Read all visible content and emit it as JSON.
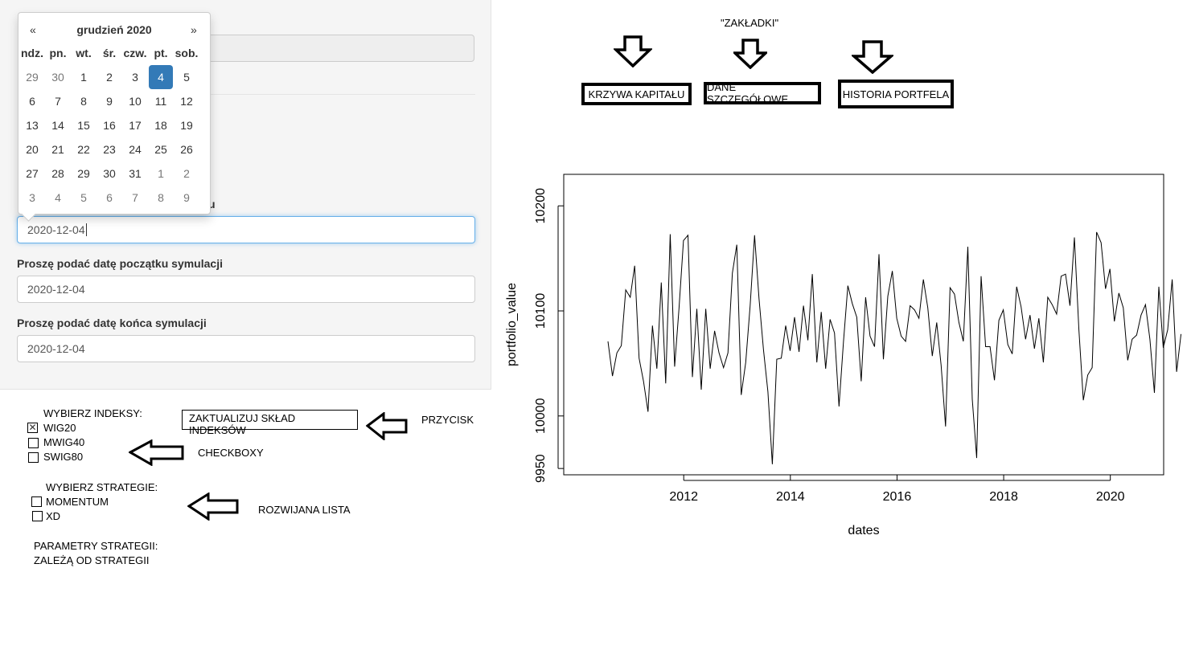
{
  "form": {
    "field_top_label_fragment": "u",
    "date1_value": "2020-12-04",
    "start_label": "Proszę podać datę początku symulacji",
    "start_value": "2020-12-04",
    "end_label": "Proszę podać datę końca symulacji",
    "end_value": "2020-12-04"
  },
  "calendar": {
    "prev": "«",
    "next": "»",
    "title": "grudzień 2020",
    "weekdays": [
      "ndz.",
      "pn.",
      "wt.",
      "śr.",
      "czw.",
      "pt.",
      "sob."
    ],
    "weeks": [
      [
        "29",
        "30",
        "1",
        "2",
        "3",
        "4",
        "5"
      ],
      [
        "6",
        "7",
        "8",
        "9",
        "10",
        "11",
        "12"
      ],
      [
        "13",
        "14",
        "15",
        "16",
        "17",
        "18",
        "19"
      ],
      [
        "20",
        "21",
        "22",
        "23",
        "24",
        "25",
        "26"
      ],
      [
        "27",
        "28",
        "29",
        "30",
        "31",
        "1",
        "2"
      ],
      [
        "3",
        "4",
        "5",
        "6",
        "7",
        "8",
        "9"
      ]
    ],
    "selected": "4"
  },
  "mockup": {
    "indices_heading": "WYBIERZ INDEKSY:",
    "indices": [
      {
        "label": "WIG20",
        "checked": true
      },
      {
        "label": "MWIG40",
        "checked": false
      },
      {
        "label": "SWIG80",
        "checked": false
      }
    ],
    "update_button": "ZAKTUALIZUJ SKŁAD INDEKSÓW",
    "button_note": "PRZYCISK",
    "checkbox_note": "CHECKBOXY",
    "strategy_heading": "WYBIERZ STRATEGIE:",
    "strategies": [
      {
        "label": "MOMENTUM",
        "checked": false
      },
      {
        "label": "XD",
        "checked": false
      }
    ],
    "dropdown_note": "ROZWIJANA LISTA",
    "params_line1": "PARAMETRY STRATEGII:",
    "params_line2": "ZALEŻĄ OD STRATEGII",
    "tabs_note": "\"ZAKŁADKI\"",
    "tabs": [
      "KRZYWA KAPITAŁU",
      "DANE SZCZEGÓŁOWE",
      "HISTORIA PORTFELA"
    ]
  },
  "chart_data": {
    "type": "line",
    "xlabel": "dates",
    "ylabel": "portfolio_value",
    "xlim": [
      2009.75,
      2021.0
    ],
    "ylim": [
      9944,
      10230
    ],
    "xticks": [
      2012,
      2014,
      2016,
      2018,
      2020
    ],
    "yticks": [
      9950,
      10000,
      10100,
      10200
    ],
    "x_start": 2010.58,
    "x_step": 0.0833,
    "values": [
      10071,
      10038,
      10060,
      10067,
      10120,
      10113,
      10143,
      10055,
      10033,
      10004,
      10086,
      10045,
      10127,
      10031,
      10173,
      10047,
      10103,
      10167,
      10172,
      10037,
      10102,
      10025,
      10102,
      10045,
      10081,
      10060,
      10046,
      10060,
      10136,
      10163,
      10020,
      10051,
      10105,
      10172,
      10112,
      10063,
      10023,
      9954,
      10054,
      10055,
      10086,
      10062,
      10094,
      10061,
      10105,
      10072,
      10135,
      10051,
      10099,
      10045,
      10092,
      10079,
      10009,
      10070,
      10124,
      10107,
      10094,
      10033,
      10113,
      10076,
      10066,
      10154,
      10054,
      10114,
      10138,
      10093,
      10076,
      10071,
      10105,
      10101,
      10093,
      10130,
      10103,
      10057,
      10089,
      10048,
      9990,
      10122,
      10116,
      10089,
      10071,
      10161,
      10016,
      9960,
      10133,
      10066,
      10066,
      10034,
      10091,
      10101,
      10068,
      10059,
      10123,
      10104,
      10073,
      10096,
      10064,
      10093,
      10051,
      10113,
      10106,
      10097,
      10133,
      10135,
      10105,
      10170,
      10082,
      10015,
      10039,
      10046,
      10175,
      10165,
      10121,
      10140,
      10090,
      10117,
      10103,
      10053,
      10073,
      10077,
      10096,
      10106,
      10073,
      10022,
      10123,
      10065,
      10082,
      10130,
      10042,
      10078
    ]
  }
}
